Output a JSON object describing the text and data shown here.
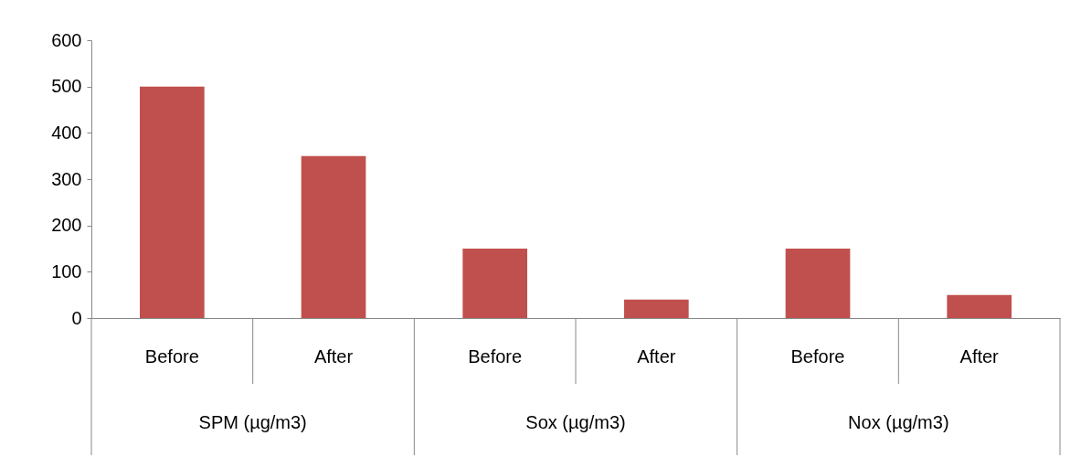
{
  "chart_data": {
    "type": "bar",
    "categories": [
      "Before",
      "After",
      "Before",
      "After",
      "Before",
      "After"
    ],
    "values": [
      500,
      350,
      150,
      40,
      150,
      50
    ],
    "color": "#c0504d",
    "ylim": [
      0,
      600
    ],
    "yticks": [
      0,
      100,
      200,
      300,
      400,
      500,
      600
    ],
    "grid": false,
    "annotations": [
      "SPM (µg/m3)",
      "Sox (µg/m3)",
      "Nox (µg/m3)"
    ]
  }
}
